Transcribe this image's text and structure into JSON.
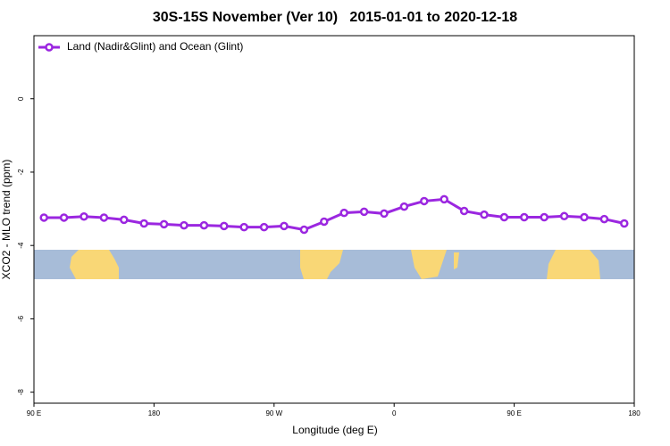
{
  "chart_data": {
    "type": "line",
    "title": "30S-15S November (Ver 10)   2015-01-01 to 2020-12-18",
    "x_label": "Longitude (deg E)",
    "y_label": "XCO2 - MLO trend (ppm)",
    "x": [
      -262.5,
      -247.5,
      -232.5,
      -217.5,
      -202.5,
      -187.5,
      -172.5,
      -157.5,
      -142.5,
      -127.5,
      -112.5,
      -97.5,
      -82.5,
      -67.5,
      -52.5,
      -37.5,
      -22.5,
      -7.5,
      7.5,
      22.5,
      37.5,
      52.5,
      67.5,
      82.5,
      97.5,
      112.5,
      127.5,
      142.5,
      157.5,
      172.5
    ],
    "series": [
      {
        "name": "Land (Nadir&Glint) and Ocean (Glint)",
        "color": "#9b27e0",
        "values": [
          -3.24,
          -3.24,
          -3.21,
          -3.24,
          -3.3,
          -3.4,
          -3.42,
          -3.45,
          -3.45,
          -3.47,
          -3.5,
          -3.5,
          -3.47,
          -3.57,
          -3.35,
          -3.11,
          -3.08,
          -3.13,
          -2.94,
          -2.79,
          -2.74,
          -3.06,
          -3.16,
          -3.23,
          -3.23,
          -3.23,
          -3.2,
          -3.23,
          -3.28,
          -3.4
        ]
      }
    ],
    "xlim": [
      -270,
      180
    ],
    "xticks": [
      {
        "value": -270,
        "label": "90 E"
      },
      {
        "value": -180,
        "label": "180"
      },
      {
        "value": -90,
        "label": "90 W"
      },
      0,
      {
        "value": 90,
        "label": "90 E"
      },
      {
        "value": 180,
        "label": "180"
      }
    ],
    "ylim": [
      -8.3,
      1.72
    ],
    "yticks": [
      -8,
      -6,
      -4,
      -2,
      0
    ],
    "legend": "top-left"
  }
}
